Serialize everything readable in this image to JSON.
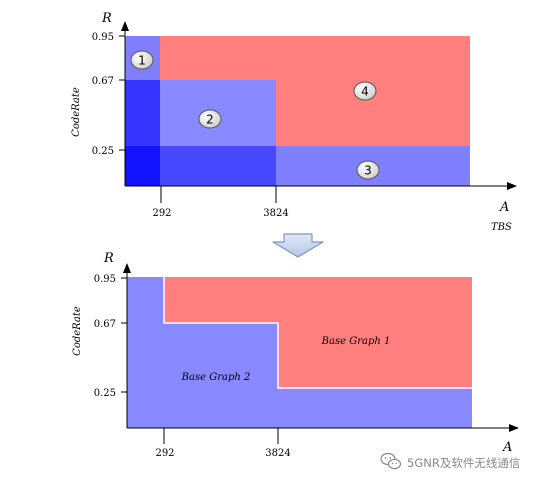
{
  "colors": {
    "red_region": "#ff7f7f",
    "blue_region": "#8888ff",
    "deep_blue": "#1a1aff",
    "axis": "#000000",
    "divider": "#ffffff",
    "badge_fill": "#e8e8e8",
    "arrow_fill": "#c9d8ee",
    "arrow_stroke": "#7f96c0"
  },
  "top_diagram": {
    "y_axis_letter": "R",
    "y_axis_label": "CodeRate",
    "x_axis_letter": "A",
    "x_axis_label": "TBS",
    "y_ticks": [
      "0.95",
      "0.67",
      "0.25"
    ],
    "x_ticks": [
      "292",
      "3824"
    ],
    "region_badges": [
      "1",
      "2",
      "3",
      "4"
    ]
  },
  "bottom_diagram": {
    "y_axis_letter": "R",
    "y_axis_label": "CodeRate",
    "x_axis_letter": "A",
    "y_ticks": [
      "0.95",
      "0.67",
      "0.25"
    ],
    "x_ticks": [
      "292",
      "3824"
    ],
    "region_labels": {
      "base_graph_1": "Base Graph 1",
      "base_graph_2": "Base Graph 2"
    }
  },
  "watermark": {
    "icon": "wechat-icon",
    "text": "5GNR及软件无线通信"
  }
}
